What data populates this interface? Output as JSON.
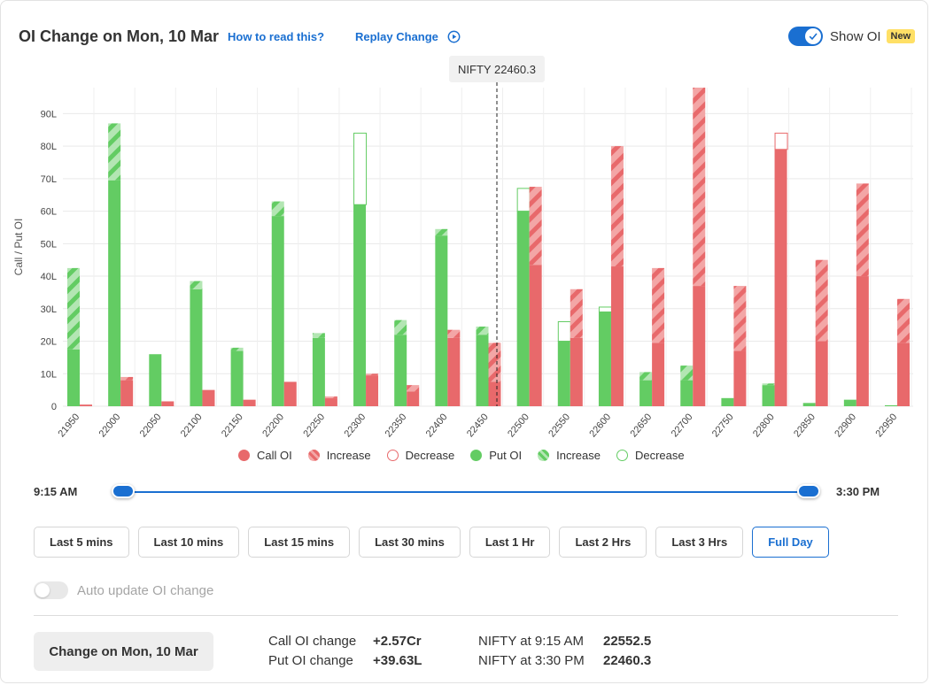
{
  "header": {
    "title": "OI Change on Mon, 10 Mar",
    "how_to_read": "How to read this?",
    "replay": "Replay Change",
    "show_oi_label": "Show OI",
    "new_badge": "New"
  },
  "colors": {
    "call": "#e8696b",
    "call_light": "#f3a6a6",
    "put": "#63cc63",
    "put_light": "#b3e6b3",
    "accent": "#1a6fd1"
  },
  "chart_data": {
    "type": "bar",
    "ylabel": "Call / Put OI",
    "ylim": [
      0,
      98
    ],
    "yticks": [
      0,
      10,
      20,
      30,
      40,
      50,
      60,
      70,
      80,
      90
    ],
    "ytick_labels": [
      "0",
      "10L",
      "20L",
      "30L",
      "40L",
      "50L",
      "60L",
      "70L",
      "80L",
      "90L"
    ],
    "categories": [
      "21950",
      "22000",
      "22050",
      "22100",
      "22150",
      "22200",
      "22250",
      "22300",
      "22350",
      "22400",
      "22450",
      "22500",
      "22550",
      "22600",
      "22650",
      "22700",
      "22750",
      "22800",
      "22850",
      "22900",
      "22950"
    ],
    "spot_label": "NIFTY 22460.3",
    "spot_value": 22460.3,
    "series": [
      {
        "name": "Put OI",
        "values": [
          17.5,
          69.5,
          16,
          36,
          17,
          58.5,
          21,
          62,
          22,
          52.5,
          22,
          60,
          20,
          29,
          8,
          8,
          2.5,
          6.5,
          1,
          2,
          0.3
        ]
      },
      {
        "name": "Increase",
        "values": [
          25,
          17.5,
          0,
          2.5,
          1,
          4.5,
          1.5,
          0,
          4.5,
          2,
          2.5,
          0,
          0,
          0,
          2.5,
          4.5,
          0,
          0.5,
          0,
          0,
          0
        ]
      },
      {
        "name": "Decrease",
        "values": [
          0,
          0,
          0,
          0,
          0,
          0,
          0,
          22,
          0,
          0,
          0,
          7,
          6,
          1.5,
          0,
          0,
          0,
          0,
          0,
          0,
          0
        ]
      },
      {
        "name": "Call OI",
        "values": [
          0.5,
          8,
          1.5,
          5,
          2,
          7.5,
          2.5,
          9.5,
          4.5,
          21,
          7.5,
          43.5,
          21,
          43,
          19.5,
          37,
          17,
          79,
          20,
          40,
          19.5
        ]
      },
      {
        "name": "Increase",
        "values": [
          0,
          1,
          0,
          0,
          0,
          0,
          0.5,
          0.5,
          2,
          2.5,
          12,
          24,
          15,
          37,
          23,
          61,
          20,
          0,
          25,
          28.5,
          13.5
        ]
      },
      {
        "name": "Decrease",
        "values": [
          0,
          0,
          0,
          0,
          0,
          0,
          0,
          0,
          0,
          0,
          0,
          0,
          0,
          0,
          0,
          0,
          0,
          5,
          0,
          0,
          0
        ]
      }
    ]
  },
  "legend": [
    {
      "label": "Call OI",
      "kind": "call-solid"
    },
    {
      "label": "Increase",
      "kind": "call-hatch"
    },
    {
      "label": "Decrease",
      "kind": "call-outline"
    },
    {
      "label": "Put OI",
      "kind": "put-solid"
    },
    {
      "label": "Increase",
      "kind": "put-hatch"
    },
    {
      "label": "Decrease",
      "kind": "put-outline"
    }
  ],
  "slider": {
    "start": "9:15 AM",
    "end": "3:30 PM"
  },
  "ranges": [
    "Last 5 mins",
    "Last 10 mins",
    "Last 15 mins",
    "Last 30 mins",
    "Last 1 Hr",
    "Last 2 Hrs",
    "Last 3 Hrs",
    "Full Day"
  ],
  "active_range": "Full Day",
  "auto_update_label": "Auto update OI change",
  "footer": {
    "change_button": "Change on Mon, 10 Mar",
    "call_label": "Call OI change",
    "call_value": "+2.57Cr",
    "put_label": "Put OI change",
    "put_value": "+39.63L",
    "nifty_start_label": "NIFTY at 9:15 AM",
    "nifty_start_value": "22552.5",
    "nifty_end_label": "NIFTY at 3:30 PM",
    "nifty_end_value": "22460.3"
  }
}
